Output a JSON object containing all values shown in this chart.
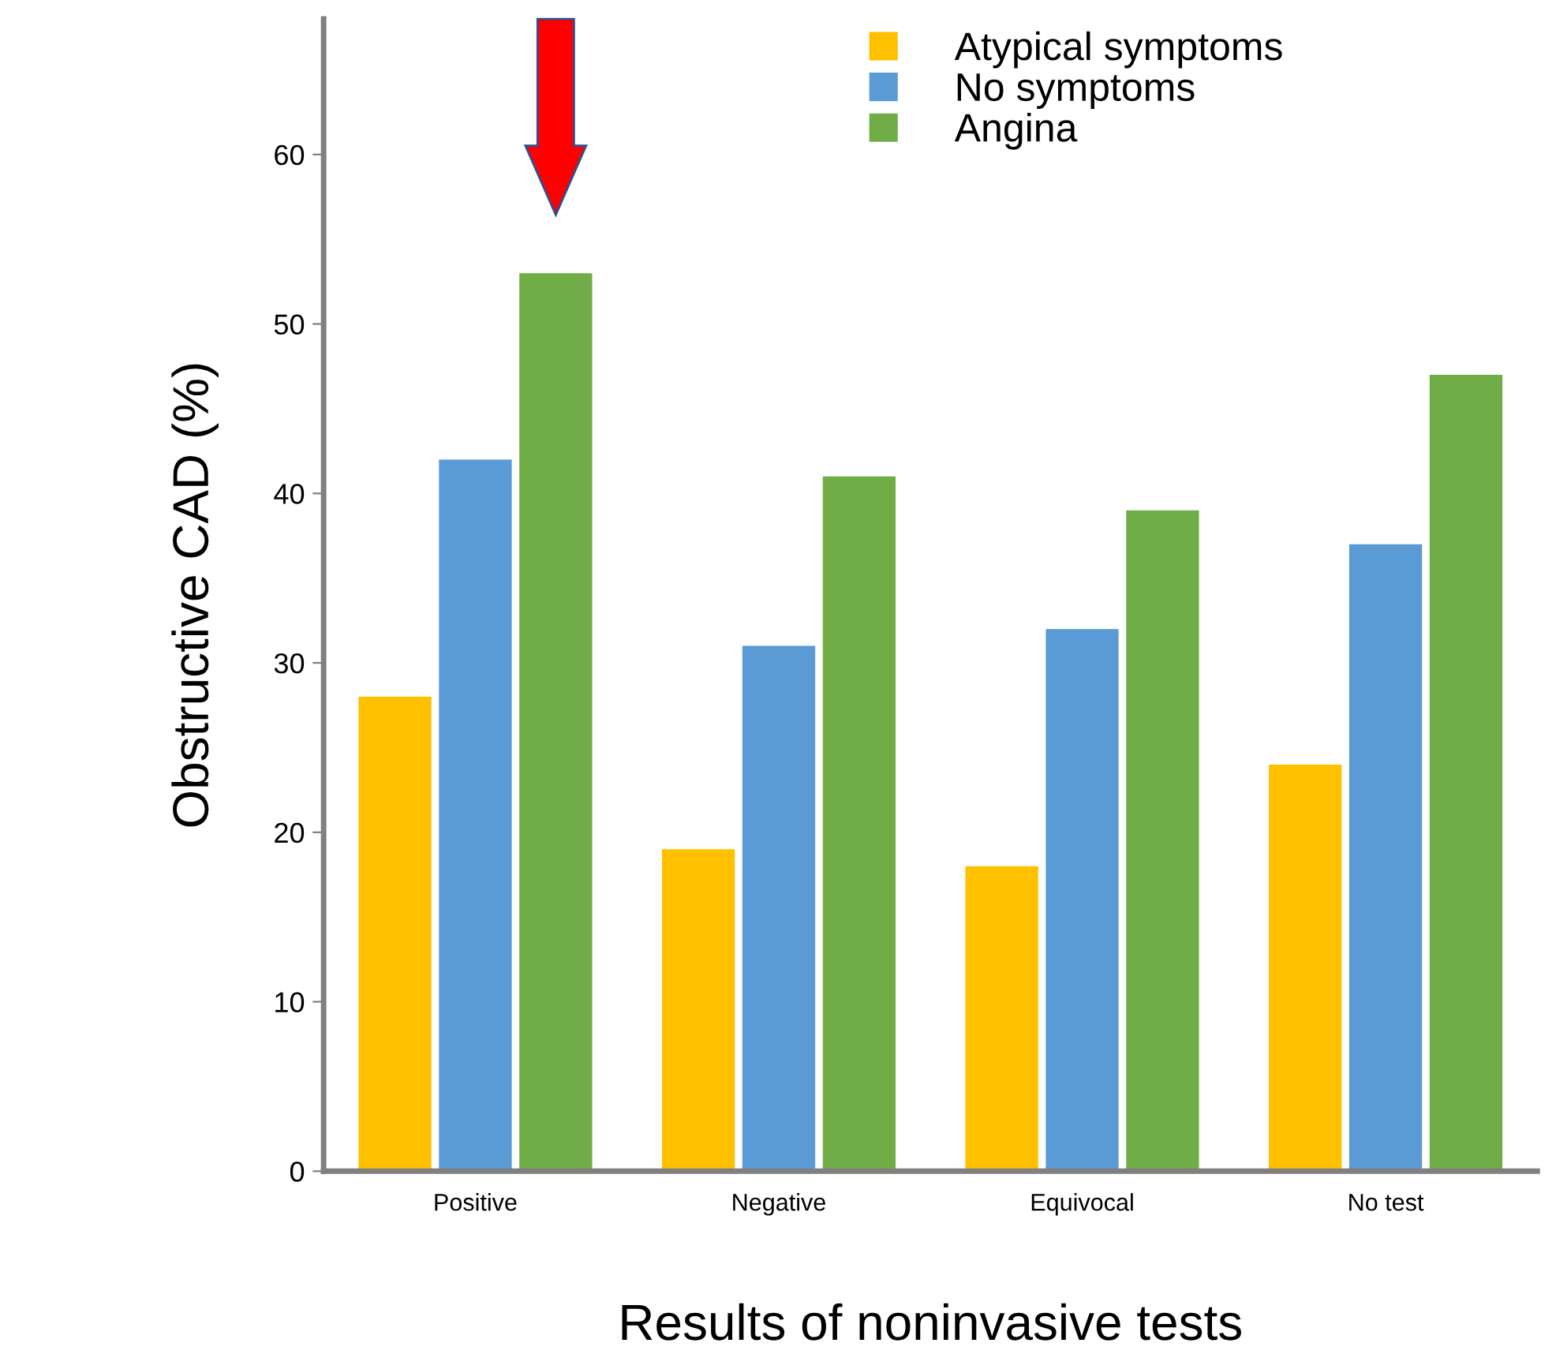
{
  "chart_data": {
    "type": "bar",
    "xlabel": "Results of noninvasive tests",
    "ylabel": "Obstructive CAD (%)",
    "categories": [
      "Positive",
      "Negative",
      "Equivocal",
      "No test"
    ],
    "series": [
      {
        "name": "Atypical symptoms",
        "color": "#ffc000",
        "values": [
          28,
          19,
          18,
          24
        ]
      },
      {
        "name": "No symptoms",
        "color": "#5b9bd5",
        "values": [
          42,
          31,
          32,
          37
        ]
      },
      {
        "name": "Angina",
        "color": "#70ad47",
        "values": [
          53,
          41,
          39,
          47
        ]
      }
    ],
    "ylim": [
      0,
      68
    ],
    "yticks": [
      0,
      10,
      20,
      30,
      40,
      50,
      60
    ],
    "grid": false,
    "legend": "top right"
  }
}
